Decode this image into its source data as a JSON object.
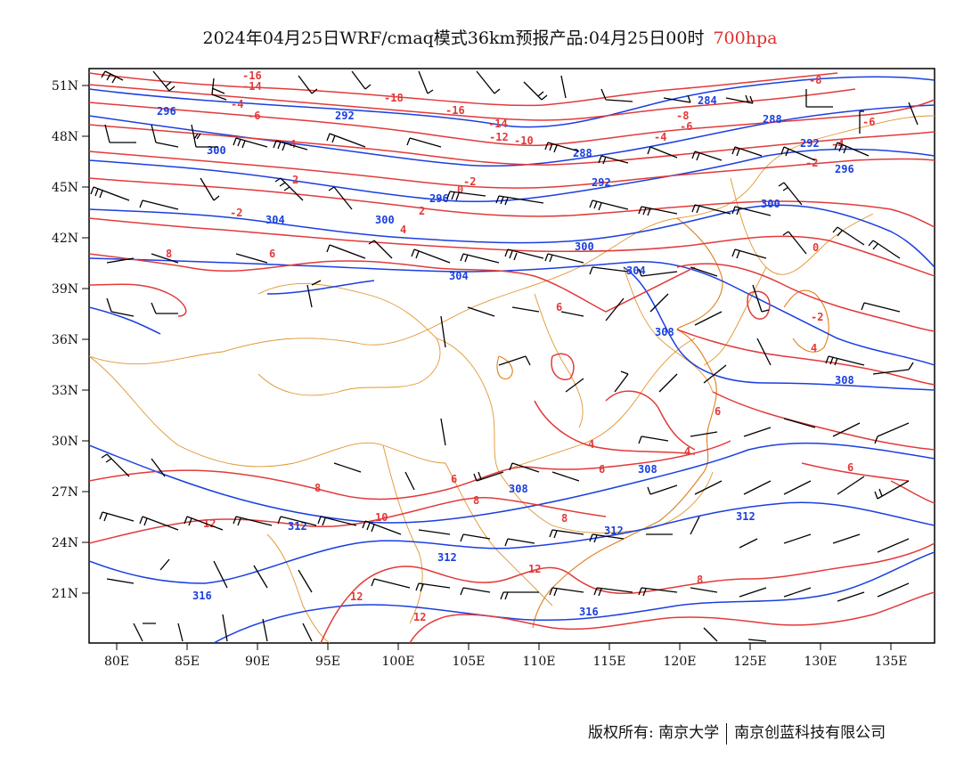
{
  "title": {
    "text": "2024年04月25日WRF/cmaq模式36km预报产品:04月25日00时",
    "level": "700hpa"
  },
  "axes": {
    "lat_labels": [
      "51N",
      "48N",
      "45N",
      "42N",
      "39N",
      "36N",
      "33N",
      "30N",
      "27N",
      "24N",
      "21N"
    ],
    "lon_labels": [
      "80E",
      "85E",
      "90E",
      "95E",
      "100E",
      "105E",
      "110E",
      "115E",
      "120E",
      "125E",
      "130E",
      "135E"
    ]
  },
  "contour_labels": {
    "height": [
      "296",
      "292",
      "300",
      "304",
      "300",
      "296",
      "292",
      "288",
      "284",
      "288",
      "292",
      "296",
      "300",
      "304",
      "308",
      "304",
      "308",
      "308",
      "312",
      "312",
      "316",
      "312",
      "316",
      "308",
      "312",
      "300"
    ],
    "temperature": [
      "-16",
      "-14",
      "-18",
      "-16",
      "-14",
      "-10",
      "-12",
      "-6",
      "-8",
      "-6",
      "-4",
      "-2",
      "0",
      "2",
      "-2",
      "4",
      "6",
      "8",
      "-4",
      "-6",
      "-8",
      "-2",
      "0",
      "2",
      "4",
      "6",
      "6",
      "4",
      "8",
      "12",
      "10",
      "12",
      "12",
      "8",
      "6",
      "8",
      "12",
      "6",
      "4",
      "8",
      "-2",
      "4",
      "6",
      "-4"
    ]
  },
  "colors": {
    "height_contour": "#1a3fe0",
    "temperature_contour": "#e23a3a",
    "boundary": "#e0952f",
    "wind_barb": "#000000"
  },
  "credit": {
    "left": "版权所有: 南京大学",
    "right": "南京创蓝科技有限公司"
  }
}
